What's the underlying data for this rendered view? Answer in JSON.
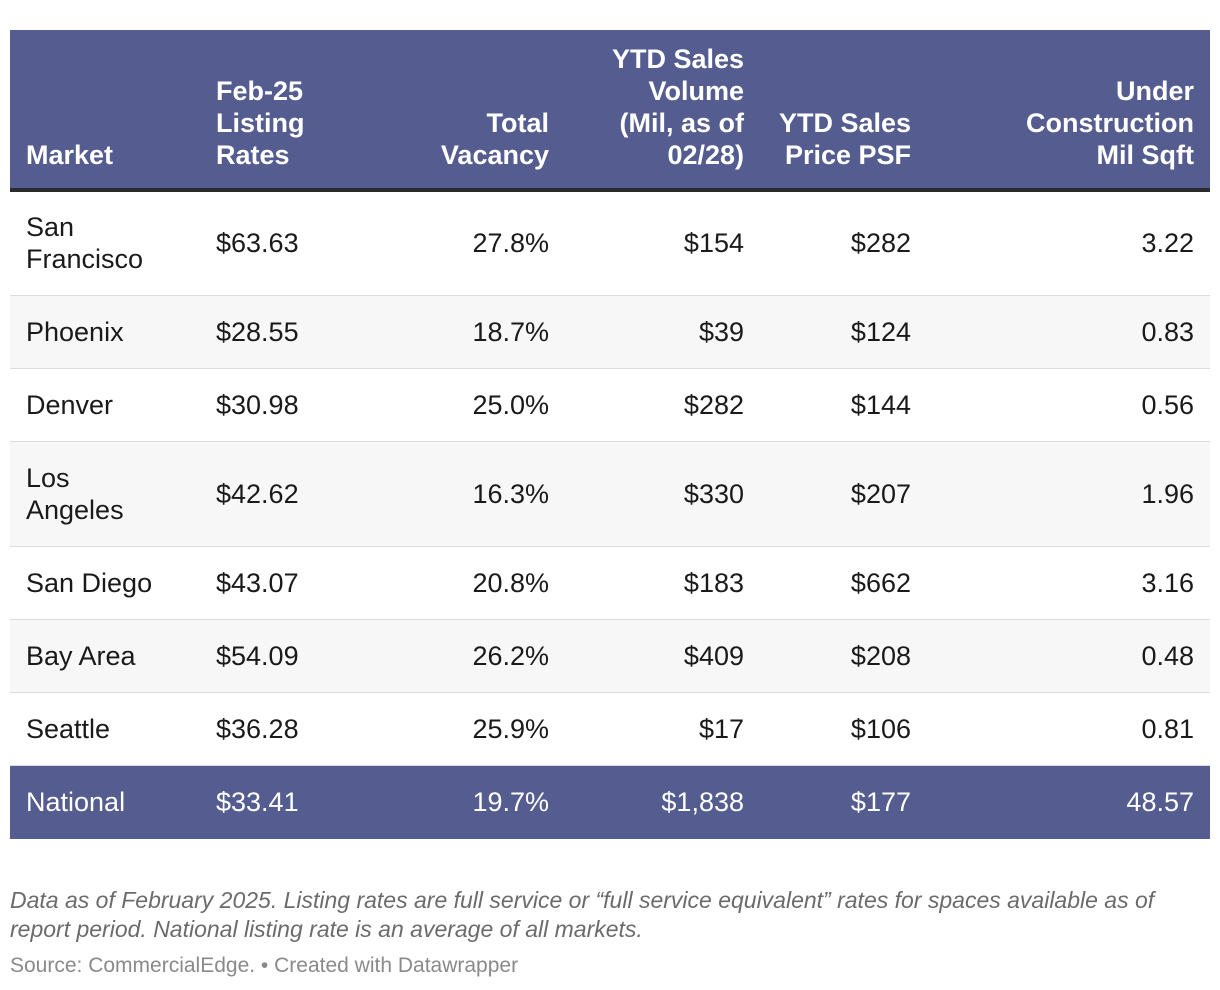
{
  "chart_data": {
    "type": "table",
    "columns": [
      "Market",
      "Feb-25 Listing Rates",
      "Total Vacancy",
      "YTD Sales Volume (Mil, as of 02/28)",
      "YTD Sales Price PSF",
      "Under Construction Mil Sqft"
    ],
    "rows": [
      [
        "San Francisco",
        "$63.63",
        "27.8%",
        "$154",
        "$282",
        "3.22"
      ],
      [
        "Phoenix",
        "$28.55",
        "18.7%",
        "$39",
        "$124",
        "0.83"
      ],
      [
        "Denver",
        "$30.98",
        "25.0%",
        "$282",
        "$144",
        "0.56"
      ],
      [
        "Los Angeles",
        "$42.62",
        "16.3%",
        "$330",
        "$207",
        "1.96"
      ],
      [
        "San Diego",
        "$43.07",
        "20.8%",
        "$183",
        "$662",
        "3.16"
      ],
      [
        "Bay Area",
        "$54.09",
        "26.2%",
        "$409",
        "$208",
        "0.48"
      ],
      [
        "Seattle",
        "$36.28",
        "25.9%",
        "$17",
        "$106",
        "0.81"
      ]
    ],
    "total_row": [
      "National",
      "$33.41",
      "19.7%",
      "$1,838",
      "$177",
      "48.57"
    ],
    "notes": "Data as of February 2025. Listing rates are full service or “full service equivalent” rates for spaces available as of report period. National listing rate is an average of all markets.",
    "source": "Source: CommercialEdge. • Created with Datawrapper"
  },
  "colors": {
    "header_bg": "#545c90",
    "header_text": "#ffffff",
    "row_alt": "#f7f7f7"
  }
}
